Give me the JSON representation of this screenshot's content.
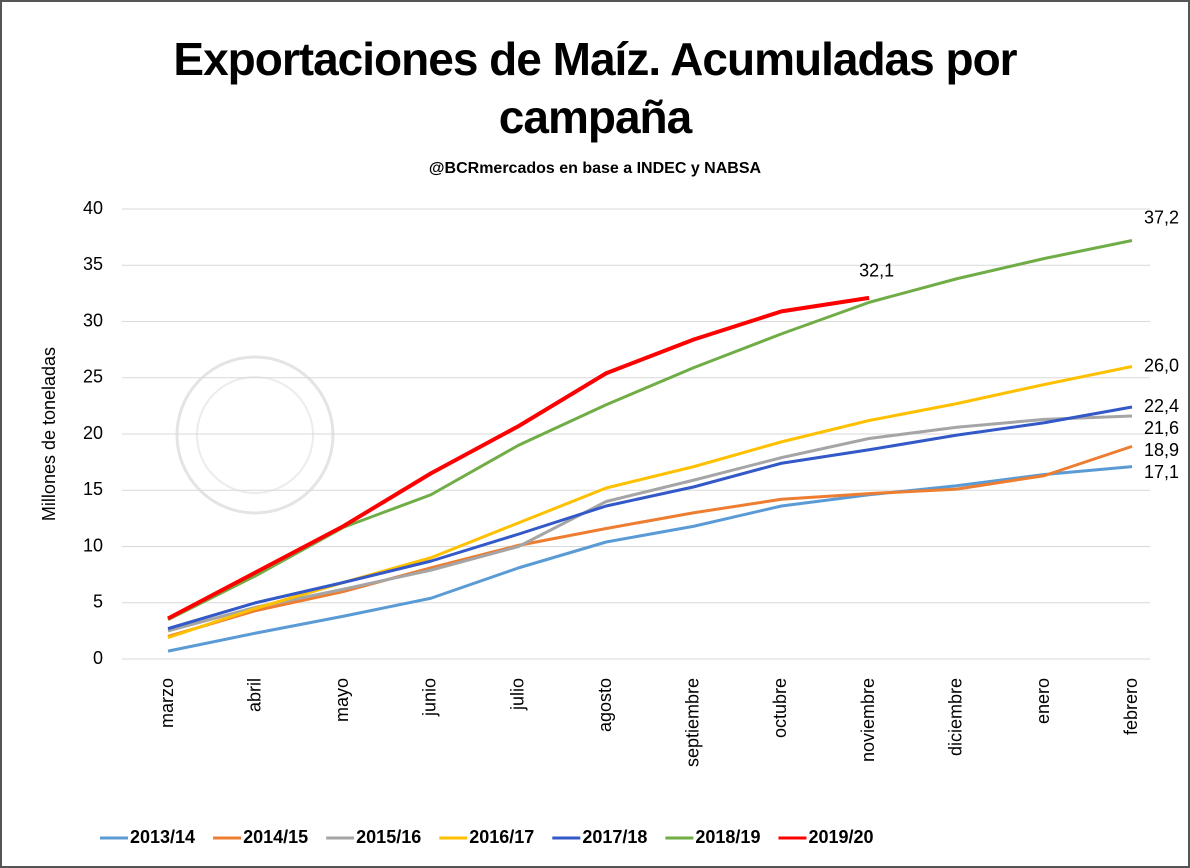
{
  "chart_data": {
    "type": "line",
    "title": "Exportaciones de Maíz. Acumuladas por campaña",
    "subtitle": "@BCRmercados en base a INDEC y NABSA",
    "y_label": "Millones de toneladas",
    "categories": [
      "marzo",
      "abril",
      "mayo",
      "junio",
      "julio",
      "agosto",
      "septiembre",
      "octubre",
      "noviembre",
      "diciembre",
      "enero",
      "febrero"
    ],
    "ylim": [
      0,
      40
    ],
    "yticks": [
      0,
      5,
      10,
      15,
      20,
      25,
      30,
      35,
      40
    ],
    "grid": true,
    "legend": "bottom",
    "series": [
      {
        "name": "2013/14",
        "color": "#5b9bd5",
        "values": [
          0.7,
          2.3,
          3.8,
          5.4,
          8.1,
          10.4,
          11.8,
          13.6,
          14.6,
          15.4,
          16.4,
          17.1
        ],
        "value_labels": [
          null,
          null,
          null,
          null,
          null,
          null,
          null,
          null,
          null,
          null,
          null,
          "17,1"
        ]
      },
      {
        "name": "2014/15",
        "color": "#ed7d31",
        "values": [
          2.0,
          4.3,
          6.0,
          8.1,
          10.1,
          11.6,
          13.0,
          14.2,
          14.7,
          15.1,
          16.3,
          18.9
        ],
        "value_labels": [
          null,
          null,
          null,
          null,
          null,
          null,
          null,
          null,
          null,
          null,
          null,
          "18,9"
        ]
      },
      {
        "name": "2015/16",
        "color": "#a5a5a5",
        "values": [
          2.5,
          4.6,
          6.2,
          7.9,
          10.0,
          14.0,
          15.9,
          17.9,
          19.6,
          20.6,
          21.3,
          21.6
        ],
        "value_labels": [
          null,
          null,
          null,
          null,
          null,
          null,
          null,
          null,
          null,
          null,
          null,
          "21,6"
        ]
      },
      {
        "name": "2016/17",
        "color": "#ffc000",
        "values": [
          1.9,
          4.5,
          6.8,
          9.0,
          12.1,
          15.2,
          17.1,
          19.3,
          21.2,
          22.7,
          24.4,
          26.0
        ],
        "value_labels": [
          null,
          null,
          null,
          null,
          null,
          null,
          null,
          null,
          null,
          null,
          null,
          "26,0"
        ]
      },
      {
        "name": "2017/18",
        "color": "#3358c8",
        "values": [
          2.7,
          5.0,
          6.8,
          8.7,
          11.1,
          13.6,
          15.3,
          17.4,
          18.6,
          19.9,
          21.0,
          22.4
        ],
        "value_labels": [
          null,
          null,
          null,
          null,
          null,
          null,
          null,
          null,
          null,
          null,
          null,
          "22,4"
        ]
      },
      {
        "name": "2018/19",
        "color": "#70ad47",
        "values": [
          3.5,
          7.4,
          11.7,
          14.6,
          19.0,
          22.6,
          25.9,
          28.9,
          31.7,
          33.8,
          35.6,
          37.2
        ],
        "value_labels": [
          null,
          null,
          null,
          null,
          null,
          null,
          null,
          null,
          null,
          null,
          null,
          "37,2"
        ]
      },
      {
        "name": "2019/20",
        "color": "#ff0000",
        "values": [
          3.6,
          7.7,
          11.8,
          16.5,
          20.7,
          25.4,
          28.4,
          30.9,
          32.1,
          null,
          null,
          null
        ],
        "value_labels": [
          null,
          null,
          null,
          null,
          null,
          null,
          null,
          null,
          "32,1",
          null,
          null,
          null
        ]
      }
    ]
  }
}
